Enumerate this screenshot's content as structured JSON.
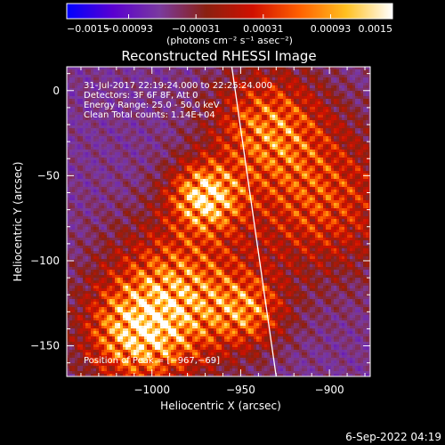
{
  "chart_data": {
    "type": "heatmap",
    "title": "Reconstructed RHESSI Image",
    "xlabel": "Heliocentric X (arcsec)",
    "ylabel": "Heliocentric Y (arcsec)",
    "xlim": [
      -1048,
      -877
    ],
    "ylim": [
      -168,
      14
    ],
    "xticks": [
      -1000,
      -950,
      -900
    ],
    "xtick_labels": [
      "−1000",
      "−950",
      "−900"
    ],
    "yticks": [
      0,
      -50,
      -100,
      -150
    ],
    "ytick_labels": [
      "0",
      "−50",
      "−100",
      "−150"
    ],
    "colorbar": {
      "range": [
        -0.0015,
        0.0015
      ],
      "ticks": [
        -0.0015,
        -0.00093,
        -0.00031,
        0.00031,
        0.00093,
        0.0015
      ],
      "tick_labels": [
        "−0.0015",
        "−0.00093",
        "−0.00031",
        "0.00031",
        "0.00093",
        "0.0015"
      ],
      "unit_label": "(photons cm⁻² s⁻¹ asec⁻²)",
      "colors": [
        "#0000ff",
        "#5a00d0",
        "#7a3a9e",
        "#8a2010",
        "#d01000",
        "#ff6000",
        "#ffc020",
        "#ffffff"
      ]
    },
    "annotations": [
      "31-Jul-2017 22:19:24.000 to 22:25:24.000",
      "Detectors: 3F 6F 8F, Att 0",
      "Energy Range: 25.0 - 50.0 keV",
      "Clean     Total counts: 1.14E+04"
    ],
    "peak_label": "Position of Peak = [−967,−69]",
    "limb_line": [
      [
        -955,
        14
      ],
      [
        -930,
        -168
      ]
    ],
    "sources": [
      {
        "x": -970,
        "y": -62,
        "sigma": 14,
        "amp": 1.0
      },
      {
        "x": -985,
        "y": -120,
        "sigma": 28,
        "amp": 0.85
      },
      {
        "x": -1010,
        "y": -145,
        "sigma": 20,
        "amp": 0.75
      },
      {
        "x": -935,
        "y": -20,
        "sigma": 22,
        "amp": 0.7
      },
      {
        "x": -905,
        "y": -65,
        "sigma": 30,
        "amp": 0.6
      },
      {
        "x": -945,
        "y": -130,
        "sigma": 14,
        "amp": 0.55
      }
    ]
  },
  "footer": {
    "timestamp": "6-Sep-2022 04:19"
  }
}
